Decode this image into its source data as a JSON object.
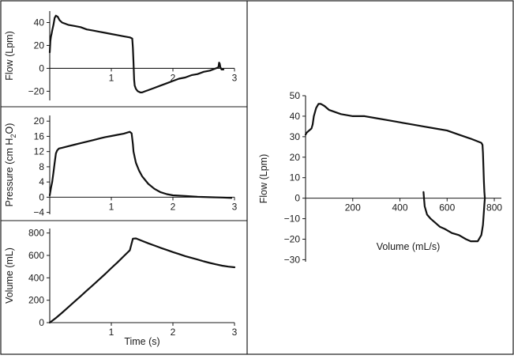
{
  "colors": {
    "line": "#111111",
    "frame": "#1a1a1a",
    "background": "#ffffff"
  },
  "chart_data": [
    {
      "id": "flow-time",
      "type": "line",
      "title": "",
      "xlabel": "",
      "ylabel": "Flow (Lpm)",
      "xlim": [
        0,
        3
      ],
      "ylim": [
        -28,
        50
      ],
      "xticks": [
        1,
        2,
        3
      ],
      "yticks": [
        -20,
        0,
        20,
        40
      ],
      "grid": false,
      "series": [
        {
          "name": "Flow",
          "x": [
            0.0,
            0.01,
            0.02,
            0.03,
            0.04,
            0.06,
            0.08,
            0.1,
            0.13,
            0.16,
            0.2,
            0.3,
            0.4,
            0.5,
            0.6,
            0.7,
            0.8,
            0.9,
            1.0,
            1.1,
            1.2,
            1.3,
            1.34,
            1.35,
            1.36,
            1.37,
            1.38,
            1.4,
            1.43,
            1.47,
            1.5,
            1.55,
            1.6,
            1.7,
            1.8,
            1.9,
            2.0,
            2.1,
            2.2,
            2.3,
            2.4,
            2.5,
            2.6,
            2.7,
            2.74,
            2.75,
            2.76,
            2.77,
            2.79,
            2.82
          ],
          "y": [
            14,
            24,
            28,
            30,
            33,
            38,
            44,
            46,
            45,
            42,
            40,
            38,
            37,
            36,
            34,
            33,
            32,
            31,
            30,
            29,
            28,
            27,
            26,
            18,
            5,
            -10,
            -15,
            -18,
            -20,
            -21,
            -21,
            -20,
            -19,
            -17,
            -15,
            -13,
            -11,
            -9,
            -8,
            -6,
            -5,
            -3,
            -2,
            0,
            1,
            5,
            4,
            1,
            -1,
            -1
          ]
        }
      ]
    },
    {
      "id": "pressure-time",
      "type": "line",
      "title": "",
      "xlabel": "",
      "ylabel": "Pressure (cm H2O)",
      "ylabel_parts": {
        "before": "Pressure (cm H",
        "sub": "2",
        "after": "O)"
      },
      "xlim": [
        0,
        3
      ],
      "ylim": [
        -4.5,
        21.5
      ],
      "xticks": [
        1,
        2,
        3
      ],
      "yticks": [
        -4,
        0,
        4,
        8,
        12,
        16,
        20
      ],
      "grid": false,
      "series": [
        {
          "name": "Pressure",
          "x": [
            0.0,
            0.02,
            0.04,
            0.06,
            0.08,
            0.1,
            0.12,
            0.15,
            0.2,
            0.3,
            0.4,
            0.5,
            0.6,
            0.7,
            0.8,
            0.9,
            1.0,
            1.1,
            1.2,
            1.3,
            1.33,
            1.35,
            1.36,
            1.38,
            1.4,
            1.45,
            1.5,
            1.6,
            1.7,
            1.8,
            1.9,
            2.0,
            2.2,
            2.4,
            2.6,
            2.8,
            2.95
          ],
          "y": [
            0.5,
            2.5,
            4.0,
            6.5,
            9.0,
            11.5,
            12.3,
            12.8,
            13.0,
            13.4,
            13.8,
            14.2,
            14.6,
            15.0,
            15.4,
            15.8,
            16.1,
            16.4,
            16.7,
            17.2,
            16.8,
            14.0,
            12.0,
            10.5,
            9.0,
            7.0,
            5.5,
            3.5,
            2.2,
            1.3,
            0.8,
            0.5,
            0.3,
            0.1,
            0.0,
            -0.1,
            -0.2
          ]
        }
      ]
    },
    {
      "id": "volume-time",
      "type": "line",
      "title": "",
      "xlabel": "Time (s)",
      "ylabel": "Volume (mL)",
      "xlim": [
        0,
        3
      ],
      "ylim": [
        0,
        840
      ],
      "xticks": [
        1,
        2,
        3
      ],
      "yticks": [
        0,
        200,
        400,
        600,
        800
      ],
      "grid": false,
      "series": [
        {
          "name": "Volume",
          "x": [
            0.0,
            0.1,
            0.2,
            0.3,
            0.4,
            0.5,
            0.6,
            0.7,
            0.8,
            0.9,
            1.0,
            1.1,
            1.2,
            1.3,
            1.35,
            1.4,
            1.5,
            1.6,
            1.7,
            1.8,
            1.9,
            2.0,
            2.1,
            2.2,
            2.3,
            2.4,
            2.5,
            2.6,
            2.7,
            2.8,
            2.9,
            3.0
          ],
          "y": [
            0,
            42,
            88,
            137,
            186,
            235,
            285,
            334,
            384,
            434,
            487,
            538,
            592,
            645,
            750,
            752,
            730,
            708,
            688,
            668,
            649,
            630,
            612,
            594,
            578,
            563,
            547,
            533,
            520,
            508,
            500,
            494
          ]
        }
      ]
    },
    {
      "id": "flow-volume",
      "type": "line",
      "title": "",
      "xlabel": "Volume (mL/s)",
      "ylabel": "Flow (Lpm)",
      "xlim": [
        0,
        830
      ],
      "ylim": [
        -31,
        50
      ],
      "xticks": [
        200,
        400,
        600,
        800
      ],
      "yticks": [
        -30,
        -20,
        -10,
        0,
        10,
        20,
        30,
        40,
        50
      ],
      "grid": false,
      "series": [
        {
          "name": "Flow-Volume loop",
          "x": [
            0,
            5,
            15,
            25,
            30,
            35,
            45,
            55,
            65,
            80,
            100,
            150,
            200,
            250,
            300,
            350,
            400,
            450,
            500,
            550,
            600,
            650,
            700,
            745,
            750,
            752,
            754,
            756,
            758,
            760,
            758,
            755,
            752,
            748,
            745,
            740,
            730,
            720,
            700,
            680,
            650,
            620,
            590,
            570,
            550,
            530,
            515,
            505,
            502,
            500
          ],
          "y": [
            31,
            32,
            33,
            34,
            36,
            40,
            44,
            46,
            46,
            45,
            43,
            41,
            40,
            40,
            39,
            38,
            37,
            36,
            35,
            34,
            33,
            31,
            29,
            27,
            26,
            22,
            15,
            8,
            3,
            0,
            -3,
            -8,
            -13,
            -16,
            -18,
            -19,
            -21,
            -21,
            -21,
            -20,
            -18,
            -17,
            -15,
            -14,
            -12,
            -10,
            -8,
            -4,
            0,
            3
          ]
        }
      ]
    }
  ]
}
